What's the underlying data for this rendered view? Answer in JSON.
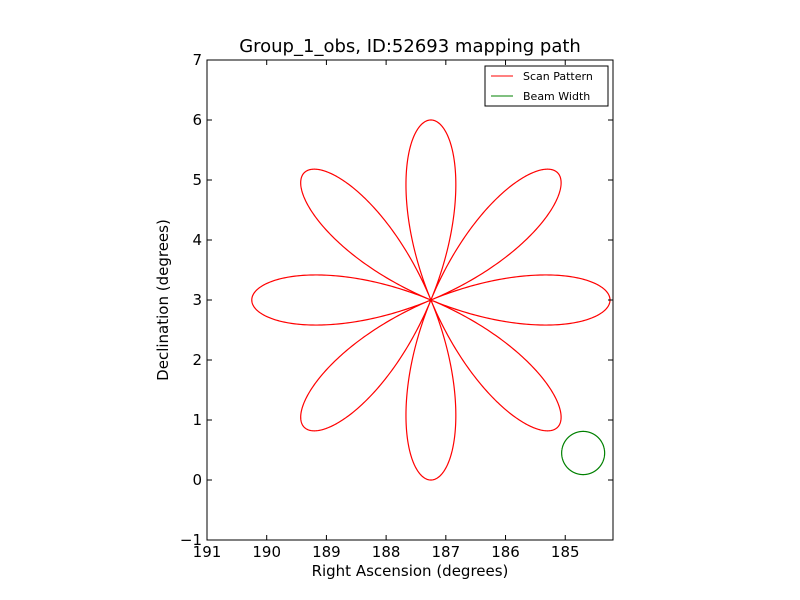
{
  "chart_data": {
    "type": "line",
    "title": "Group_1_obs, ID:52693 mapping path",
    "xlabel": "Right Ascension (degrees)",
    "ylabel": "Declination (degrees)",
    "xlim": [
      191,
      184.2
    ],
    "ylim": [
      -1,
      7
    ],
    "x_inverted": true,
    "x_ticks": [
      191,
      190,
      189,
      188,
      187,
      186,
      185
    ],
    "x_tick_labels": [
      "191",
      "190",
      "189",
      "188",
      "187",
      "186",
      "185"
    ],
    "y_ticks": [
      -1,
      0,
      1,
      2,
      3,
      4,
      5,
      6,
      7
    ],
    "y_tick_labels": [
      "−1",
      "0",
      "1",
      "2",
      "3",
      "4",
      "5",
      "6",
      "7"
    ],
    "grid": false,
    "legend_position": "top-right",
    "series": [
      {
        "name": "Scan Pattern",
        "color": "#ff0000",
        "kind": "rose",
        "center": [
          187.25,
          3.0
        ],
        "petals": 8,
        "radius_x": 3.0,
        "radius_y": 3.0
      },
      {
        "name": "Beam Width",
        "color": "#008000",
        "kind": "circle",
        "center": [
          184.7,
          0.45
        ],
        "radius_x": 0.36,
        "radius_y": 0.36
      }
    ]
  }
}
